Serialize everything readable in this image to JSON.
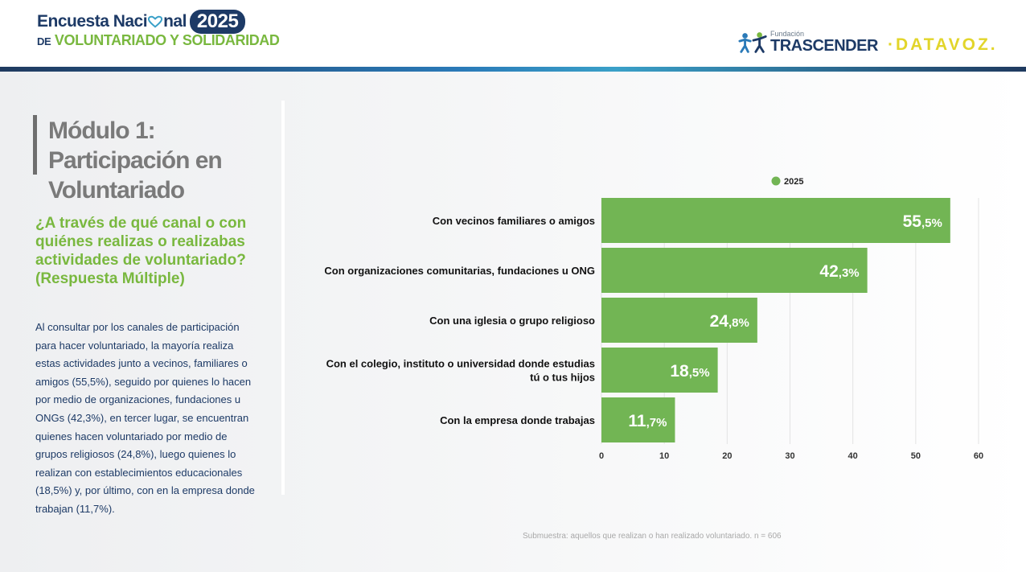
{
  "header": {
    "logo_line1": "Encuesta Naci",
    "logo_line1_end": "nal",
    "logo_year": "2025",
    "logo_de": "DE",
    "logo_line2": "VOLUNTARIADO Y SOLIDARIDAD",
    "trascender_small": "Fundación",
    "trascender_big": "TRASCENDER",
    "datavoz": "·DATAVOZ."
  },
  "left_panel": {
    "module_title": "Módulo 1: Participación en Voluntariado",
    "question": "¿A través de qué canal o con quiénes realizas o realizabas actividades de voluntariado? (Respuesta Múltiple)",
    "description": "Al consultar por los canales de participación para hacer voluntariado, la mayoría realiza estas actividades junto a vecinos, familiares o amigos (55,5%), seguido por quienes lo hacen por medio de organizaciones, fundaciones u ONGs (42,3%), en tercer lugar, se encuentran quienes hacen voluntariado por medio de grupos religiosos (24,8%), luego quienes lo realizan con establecimientos educacionales (18,5%) y, por último, con en la empresa donde trabajan (11,7%)."
  },
  "chart_data": {
    "type": "bar",
    "orientation": "horizontal",
    "categories": [
      [
        "Con vecinos familiares o amigos"
      ],
      [
        "Con organizaciones comunitarias, fundaciones u ONG"
      ],
      [
        "Con una iglesia o grupo religioso"
      ],
      [
        "Con el colegio, instituto o universidad donde estudias",
        "tú o tus hijos"
      ],
      [
        "Con la empresa donde trabajas"
      ]
    ],
    "series": [
      {
        "name": "2025",
        "color": "#72b554",
        "values": [
          55.5,
          42.3,
          24.8,
          18.5,
          11.7
        ],
        "labels_int": [
          "55",
          "42",
          "24",
          "18",
          "11"
        ],
        "labels_dec": [
          ",5%",
          ",3%",
          ",8%",
          ",5%",
          ",7%"
        ]
      }
    ],
    "xlim": [
      0,
      60
    ],
    "xticks": [
      "0",
      "10",
      "20",
      "30",
      "40",
      "50",
      "60"
    ],
    "grid": true,
    "legend": "top-center"
  },
  "footnote": "Submuestra: aquellos que realizan o han realizado voluntariado. n = 606"
}
